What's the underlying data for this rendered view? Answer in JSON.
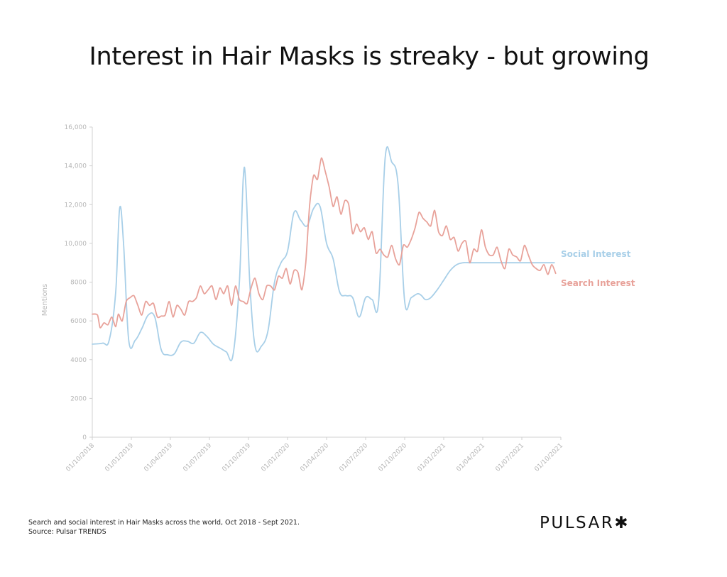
{
  "title": "Interest in Hair Masks is streaky - but growing",
  "caption": {
    "line1": "Search and social interest in Hair Masks across the world, Oct 2018 - Sept 2021.",
    "line2": "Source: Pulsar TRENDS"
  },
  "brand": "PULSAR✱",
  "colors": {
    "social": "#a8cfe8",
    "search": "#e8a29a",
    "axis": "#d0d0d0"
  },
  "chart_data": {
    "type": "line",
    "ylabel": "Mentions",
    "ylim": [
      0,
      16000
    ],
    "yticks": [
      "0",
      "2000",
      "4000",
      "6000",
      "8000",
      "10,000",
      "12,000",
      "14,000",
      "16,000"
    ],
    "xticks": [
      "01/10/2018",
      "01/01/2019",
      "01/04/2019",
      "01/07/2019",
      "01/10/2019",
      "01/01/2020",
      "01/04/2020",
      "01/07/2020",
      "01/10/2020",
      "01/01/2021",
      "01/04/2021",
      "01/07/2021",
      "01/10/2021"
    ],
    "x_unit": "months since 01/10/2018",
    "series": [
      {
        "name": "Social Interest",
        "color": "#a8cfe8",
        "x": [
          0,
          0.8,
          1.3,
          1.8,
          2.1,
          2.4,
          2.8,
          3.3,
          3.8,
          4.3,
          4.8,
          5.3,
          5.8,
          6.3,
          6.8,
          7.3,
          7.8,
          8.3,
          8.8,
          9.3,
          9.8,
          10.3,
          10.8,
          11.3,
          11.6,
          11.8,
          12.1,
          12.5,
          13.0,
          13.5,
          14.0,
          14.5,
          15.0,
          15.5,
          16.0,
          16.5,
          17.0,
          17.5,
          18.0,
          18.5,
          19.0,
          19.5,
          20.0,
          20.5,
          21.0,
          21.5,
          22.0,
          22.5,
          23.0,
          23.5,
          24.0,
          24.5,
          25.0,
          25.3,
          25.6,
          26.0,
          26.5,
          27.0,
          27.5,
          28.0,
          28.5,
          29.0,
          29.5,
          30.0,
          30.5,
          31.0,
          31.5,
          32.0,
          32.5,
          33.0,
          33.5,
          34.0,
          34.5,
          35.0,
          35.5
        ],
        "values": [
          4800,
          4850,
          5000,
          7500,
          11800,
          10000,
          5000,
          5000,
          5600,
          6300,
          6200,
          4500,
          4250,
          4300,
          4900,
          4950,
          4850,
          5400,
          5200,
          4800,
          4600,
          4400,
          4200,
          8000,
          13400,
          13000,
          8000,
          4700,
          4700,
          5500,
          8000,
          9000,
          9600,
          11600,
          11200,
          10900,
          11800,
          11900,
          10000,
          9200,
          7500,
          7300,
          7200,
          6200,
          7200,
          7100,
          7000,
          14400,
          14200,
          13000,
          7000,
          7200,
          7400,
          7300,
          7100,
          7200,
          7600,
          8100,
          8600,
          8900,
          9000,
          9000,
          9000,
          9000,
          9000,
          9000,
          9000,
          9000,
          9000,
          9000,
          9000,
          9000,
          9000,
          9000,
          9000
        ]
      },
      {
        "name": "Search Interest",
        "color": "#e8a29a",
        "x": [
          0,
          0.4,
          0.6,
          0.9,
          1.2,
          1.5,
          1.8,
          2.0,
          2.3,
          2.6,
          2.9,
          3.2,
          3.5,
          3.8,
          4.1,
          4.4,
          4.7,
          5.0,
          5.3,
          5.6,
          5.9,
          6.2,
          6.5,
          6.8,
          7.1,
          7.4,
          7.7,
          8.0,
          8.3,
          8.6,
          8.9,
          9.2,
          9.5,
          9.8,
          10.1,
          10.4,
          10.7,
          11.0,
          11.3,
          11.6,
          11.9,
          12.2,
          12.5,
          12.8,
          13.1,
          13.4,
          13.7,
          14.0,
          14.3,
          14.6,
          14.9,
          15.2,
          15.5,
          15.8,
          16.1,
          16.4,
          16.7,
          17.0,
          17.3,
          17.6,
          17.9,
          18.2,
          18.5,
          18.8,
          19.1,
          19.4,
          19.7,
          20.0,
          20.3,
          20.6,
          20.9,
          21.2,
          21.5,
          21.8,
          22.1,
          22.4,
          22.7,
          23.0,
          23.3,
          23.6,
          23.9,
          24.2,
          24.5,
          24.8,
          25.1,
          25.4,
          25.7,
          26.0,
          26.3,
          26.6,
          26.9,
          27.2,
          27.5,
          27.8,
          28.1,
          28.4,
          28.7,
          29.0,
          29.3,
          29.6,
          29.9,
          30.2,
          30.5,
          30.8,
          31.1,
          31.4,
          31.7,
          32.0,
          32.3,
          32.6,
          32.9,
          33.2,
          33.5,
          33.8,
          34.1,
          34.4,
          34.7,
          35.0,
          35.3,
          35.6
        ],
        "values": [
          6350,
          6300,
          5650,
          5900,
          5800,
          6200,
          5700,
          6350,
          6000,
          7000,
          7200,
          7300,
          6800,
          6300,
          7000,
          6800,
          6900,
          6200,
          6250,
          6300,
          7000,
          6200,
          6800,
          6600,
          6300,
          7000,
          7000,
          7200,
          7800,
          7400,
          7600,
          7800,
          7100,
          7700,
          7400,
          7800,
          6800,
          7800,
          7100,
          7000,
          6900,
          7700,
          8200,
          7400,
          7100,
          7800,
          7800,
          7600,
          8300,
          8200,
          8700,
          7900,
          8600,
          8500,
          7600,
          9000,
          12000,
          13500,
          13300,
          14400,
          13700,
          12900,
          11900,
          12400,
          11500,
          12200,
          12000,
          10500,
          11000,
          10600,
          10800,
          10200,
          10600,
          9500,
          9700,
          9400,
          9300,
          9900,
          9200,
          8900,
          9900,
          9800,
          10200,
          10800,
          11600,
          11300,
          11100,
          10900,
          11700,
          10600,
          10400,
          10900,
          10200,
          10300,
          9600,
          10000,
          10100,
          9000,
          9700,
          9600,
          10700,
          9800,
          9400,
          9400,
          9800,
          9100,
          8700,
          9700,
          9400,
          9300,
          9100,
          9900,
          9400,
          8900,
          8700,
          8600,
          8900,
          8400,
          8900,
          8450
        ]
      }
    ]
  }
}
